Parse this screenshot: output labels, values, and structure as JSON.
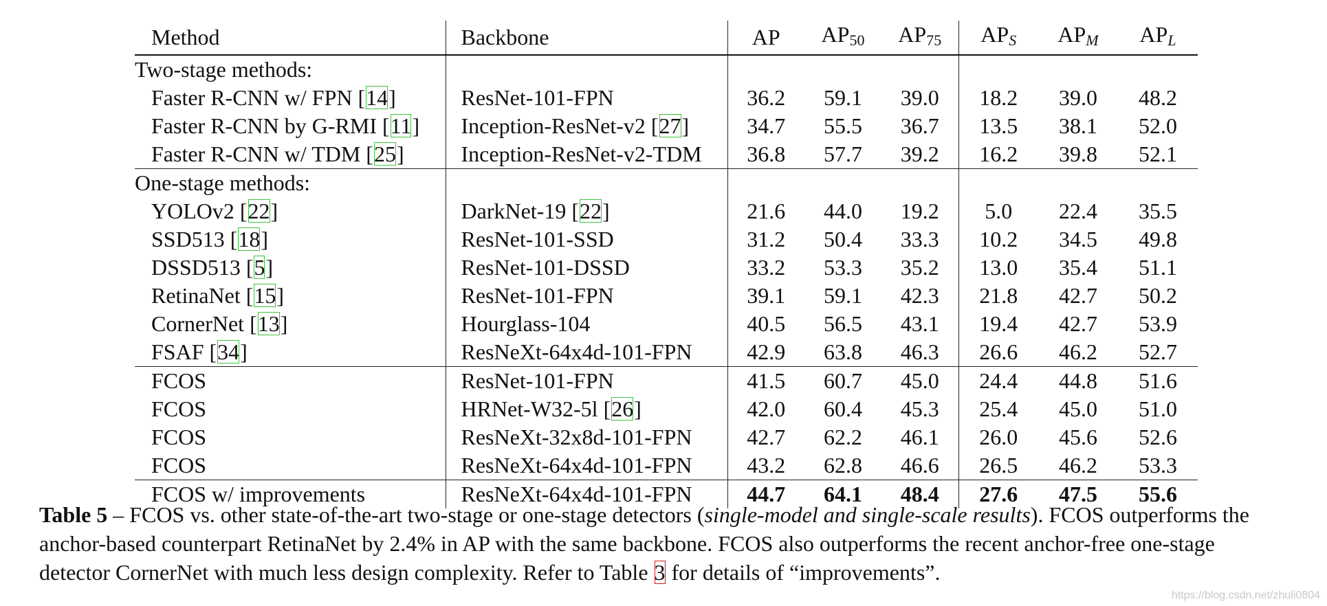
{
  "table": {
    "headers": {
      "method": "Method",
      "backbone": "Backbone",
      "ap": "AP",
      "ap50": {
        "base": "AP",
        "sub": "50"
      },
      "ap75": {
        "base": "AP",
        "sub": "75"
      },
      "aps": {
        "base": "AP",
        "sub": "S"
      },
      "apm": {
        "base": "AP",
        "sub": "M"
      },
      "apl": {
        "base": "AP",
        "sub": "L"
      }
    },
    "sections": {
      "two_stage": "Two-stage methods:",
      "one_stage": "One-stage methods:"
    },
    "two_stage_rows": [
      {
        "method": "Faster R-CNN w/ FPN",
        "method_ref": "14",
        "backbone": "ResNet-101-FPN",
        "backbone_ref": "",
        "values": [
          "36.2",
          "59.1",
          "39.0",
          "18.2",
          "39.0",
          "48.2"
        ]
      },
      {
        "method": "Faster R-CNN by G-RMI",
        "method_ref": "11",
        "backbone": "Inception-ResNet-v2",
        "backbone_ref": "27",
        "values": [
          "34.7",
          "55.5",
          "36.7",
          "13.5",
          "38.1",
          "52.0"
        ]
      },
      {
        "method": "Faster R-CNN w/ TDM",
        "method_ref": "25",
        "backbone": "Inception-ResNet-v2-TDM",
        "backbone_ref": "",
        "values": [
          "36.8",
          "57.7",
          "39.2",
          "16.2",
          "39.8",
          "52.1"
        ]
      }
    ],
    "one_stage_rows": [
      {
        "method": "YOLOv2",
        "method_ref": "22",
        "backbone": "DarkNet-19",
        "backbone_ref": "22",
        "values": [
          "21.6",
          "44.0",
          "19.2",
          "5.0",
          "22.4",
          "35.5"
        ]
      },
      {
        "method": "SSD513",
        "method_ref": "18",
        "backbone": "ResNet-101-SSD",
        "backbone_ref": "",
        "values": [
          "31.2",
          "50.4",
          "33.3",
          "10.2",
          "34.5",
          "49.8"
        ]
      },
      {
        "method": "DSSD513",
        "method_ref": "5",
        "backbone": "ResNet-101-DSSD",
        "backbone_ref": "",
        "values": [
          "33.2",
          "53.3",
          "35.2",
          "13.0",
          "35.4",
          "51.1"
        ]
      },
      {
        "method": "RetinaNet",
        "method_ref": "15",
        "backbone": "ResNet-101-FPN",
        "backbone_ref": "",
        "values": [
          "39.1",
          "59.1",
          "42.3",
          "21.8",
          "42.7",
          "50.2"
        ]
      },
      {
        "method": "CornerNet",
        "method_ref": "13",
        "backbone": "Hourglass-104",
        "backbone_ref": "",
        "values": [
          "40.5",
          "56.5",
          "43.1",
          "19.4",
          "42.7",
          "53.9"
        ]
      },
      {
        "method": "FSAF",
        "method_ref": "34",
        "backbone": "ResNeXt-64x4d-101-FPN",
        "backbone_ref": "",
        "values": [
          "42.9",
          "63.8",
          "46.3",
          "26.6",
          "46.2",
          "52.7"
        ]
      }
    ],
    "fcos_rows": [
      {
        "method": "FCOS",
        "method_ref": "",
        "backbone": "ResNet-101-FPN",
        "backbone_ref": "",
        "values": [
          "41.5",
          "60.7",
          "45.0",
          "24.4",
          "44.8",
          "51.6"
        ]
      },
      {
        "method": "FCOS",
        "method_ref": "",
        "backbone": "HRNet-W32-5l",
        "backbone_ref": "26",
        "values": [
          "42.0",
          "60.4",
          "45.3",
          "25.4",
          "45.0",
          "51.0"
        ]
      },
      {
        "method": "FCOS",
        "method_ref": "",
        "backbone": "ResNeXt-32x8d-101-FPN",
        "backbone_ref": "",
        "values": [
          "42.7",
          "62.2",
          "46.1",
          "26.0",
          "45.6",
          "52.6"
        ]
      },
      {
        "method": "FCOS",
        "method_ref": "",
        "backbone": "ResNeXt-64x4d-101-FPN",
        "backbone_ref": "",
        "values": [
          "43.2",
          "62.8",
          "46.6",
          "26.5",
          "46.2",
          "53.3"
        ]
      }
    ],
    "final_row": {
      "method": "FCOS w/ improvements",
      "method_ref": "",
      "backbone": "ResNeXt-64x4d-101-FPN",
      "backbone_ref": "",
      "values": [
        "44.7",
        "64.1",
        "48.4",
        "27.6",
        "47.5",
        "55.6"
      ]
    }
  },
  "caption": {
    "label": "Table 5",
    "dash": " – ",
    "part1": "FCOS vs. other state-of-the-art two-stage or one-stage detectors (",
    "italic": "single-model and single-scale results",
    "part2": "). FCOS outperforms the anchor-based counterpart RetinaNet by 2.4% in AP with the same backbone. FCOS also outperforms the recent anchor-free one-stage detector CornerNet with much less design complexity. Refer to Table ",
    "table_ref": "3",
    "part3": " for details of “improvements”."
  },
  "watermark": "https://blog.csdn.net/zhuli0804",
  "colors": {
    "citation_box": "#3ec13e",
    "table_ref_box": "#e01010",
    "text": "#111111"
  }
}
